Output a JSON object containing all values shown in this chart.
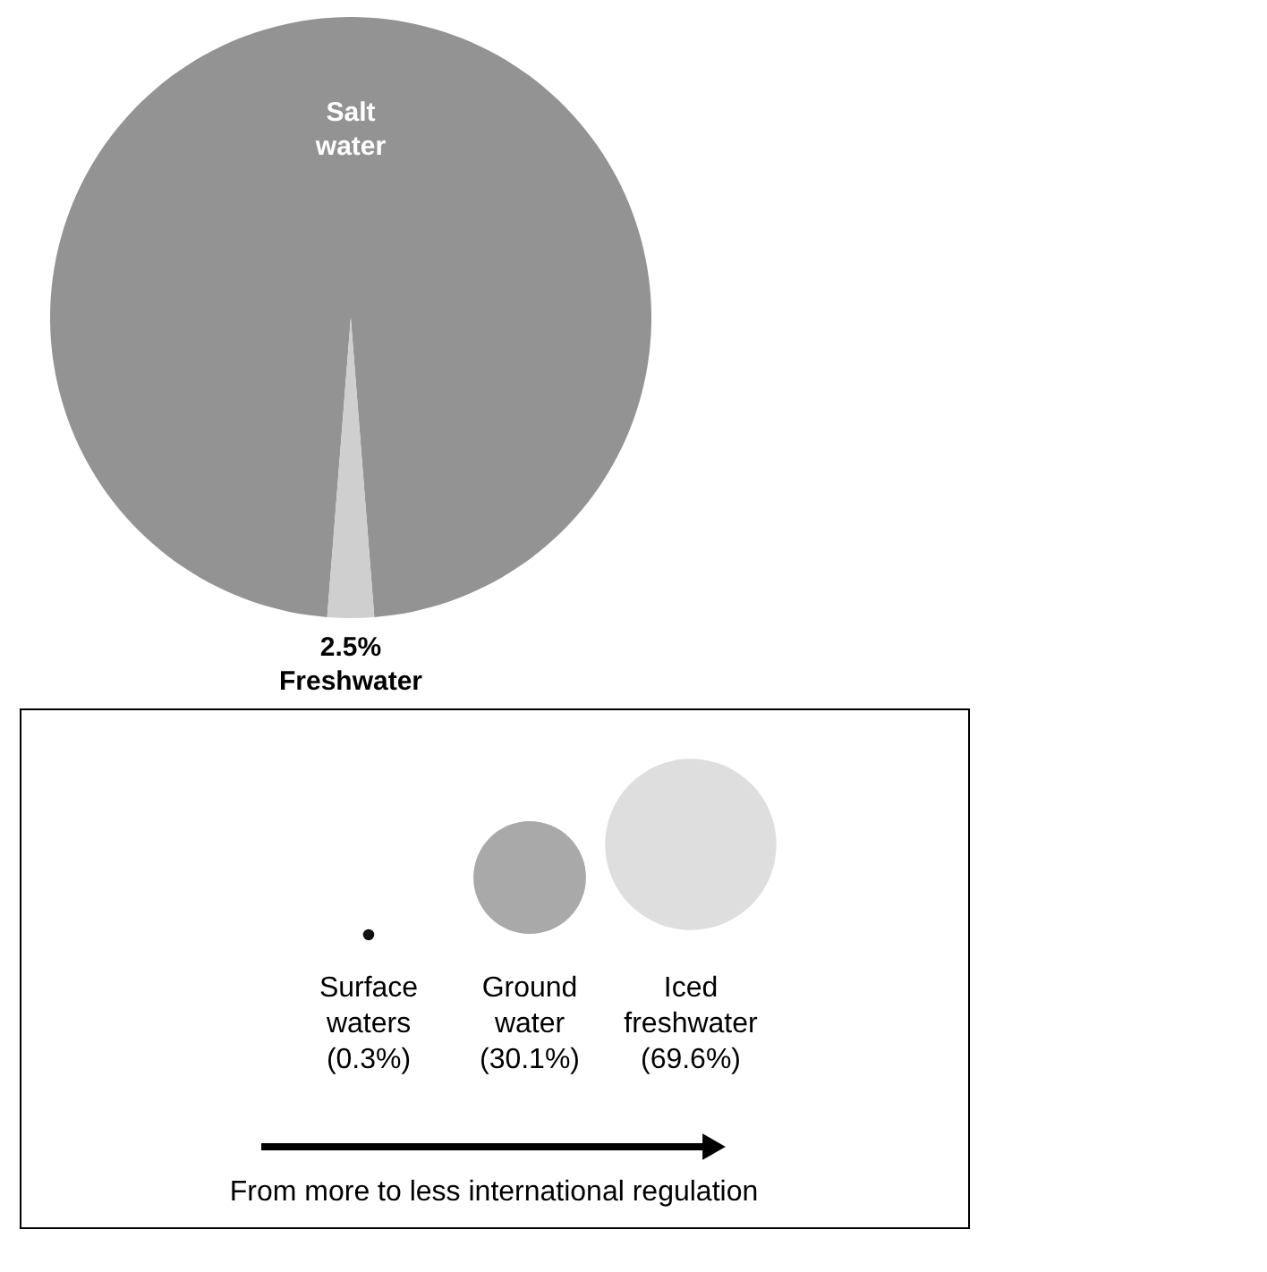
{
  "chart_data": [
    {
      "type": "pie",
      "categories": [
        "Salt water",
        "Freshwater"
      ],
      "values": [
        97.5,
        2.5
      ],
      "colors": [
        "#939393",
        "#cfcfcf"
      ],
      "value_labels": [
        null,
        "2.5%"
      ]
    },
    {
      "type": "other",
      "categories": [
        "Surface waters",
        "Ground water",
        "Iced freshwater"
      ],
      "values": [
        0.3,
        30.1,
        69.6
      ],
      "colors": [
        "#111111",
        "#a9a9a9",
        "#dedede"
      ],
      "value_labels": [
        "(0.3%)",
        "(30.1%)",
        "(69.6%)"
      ],
      "annotations": [
        "From more to less international regulation"
      ]
    }
  ]
}
